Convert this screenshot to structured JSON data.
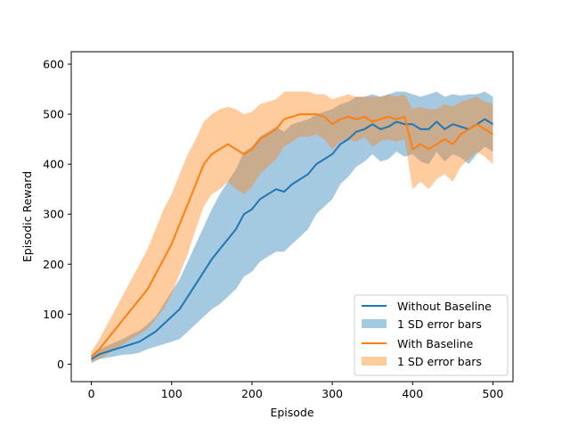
{
  "chart_data": {
    "type": "line",
    "title": "",
    "xlabel": "Episode",
    "ylabel": "Episodic Reward",
    "xlim": [
      -25,
      525
    ],
    "ylim": [
      -35,
      625
    ],
    "xticks": [
      0,
      100,
      200,
      300,
      400,
      500
    ],
    "yticks": [
      0,
      100,
      200,
      300,
      400,
      500,
      600
    ],
    "grid": false,
    "legend_position": "lower right",
    "series": [
      {
        "name": "Without Baseline",
        "color": "#1f77b4",
        "band_label": "1 SD error bars",
        "band_color": "#1f77b4",
        "mean": {
          "x": [
            0,
            10,
            20,
            30,
            40,
            50,
            60,
            70,
            80,
            90,
            100,
            110,
            120,
            130,
            140,
            150,
            160,
            170,
            180,
            190,
            200,
            210,
            220,
            230,
            240,
            250,
            260,
            270,
            280,
            290,
            300,
            310,
            320,
            330,
            340,
            350,
            360,
            370,
            380,
            390,
            400,
            410,
            420,
            430,
            440,
            450,
            460,
            470,
            480,
            490,
            500
          ],
          "y": [
            10,
            20,
            25,
            30,
            35,
            40,
            45,
            55,
            65,
            80,
            95,
            110,
            135,
            160,
            185,
            210,
            230,
            250,
            270,
            300,
            310,
            330,
            340,
            350,
            345,
            360,
            370,
            380,
            400,
            410,
            420,
            440,
            450,
            465,
            470,
            480,
            470,
            475,
            485,
            480,
            480,
            470,
            470,
            485,
            470,
            480,
            475,
            470,
            480,
            490,
            480
          ]
        },
        "sd": [
          8,
          10,
          12,
          14,
          16,
          20,
          22,
          25,
          30,
          40,
          50,
          60,
          70,
          80,
          90,
          100,
          110,
          115,
          120,
          125,
          125,
          125,
          125,
          125,
          120,
          120,
          115,
          110,
          100,
          95,
          90,
          80,
          75,
          70,
          65,
          60,
          65,
          65,
          60,
          65,
          60,
          65,
          70,
          60,
          65,
          60,
          62,
          70,
          60,
          55,
          55
        ]
      },
      {
        "name": "With Baseline",
        "color": "#ff7f0e",
        "band_label": "1 SD error bars",
        "band_color": "#ff7f0e",
        "mean": {
          "x": [
            0,
            10,
            20,
            30,
            40,
            50,
            60,
            70,
            80,
            90,
            100,
            110,
            120,
            130,
            140,
            150,
            160,
            170,
            180,
            190,
            200,
            210,
            220,
            230,
            240,
            250,
            260,
            270,
            280,
            290,
            300,
            310,
            320,
            330,
            340,
            350,
            360,
            370,
            380,
            390,
            400,
            410,
            420,
            430,
            440,
            450,
            460,
            470,
            480,
            490,
            500
          ],
          "y": [
            15,
            30,
            50,
            70,
            90,
            110,
            130,
            150,
            180,
            210,
            240,
            280,
            320,
            360,
            400,
            420,
            430,
            440,
            430,
            420,
            430,
            450,
            460,
            470,
            490,
            495,
            500,
            500,
            500,
            495,
            480,
            490,
            495,
            490,
            495,
            485,
            490,
            495,
            490,
            495,
            430,
            440,
            430,
            440,
            450,
            440,
            460,
            470,
            480,
            470,
            460
          ]
        },
        "sd": [
          10,
          20,
          30,
          40,
          50,
          60,
          70,
          80,
          90,
          100,
          100,
          100,
          100,
          90,
          85,
          80,
          80,
          75,
          80,
          80,
          75,
          70,
          65,
          60,
          55,
          50,
          45,
          45,
          40,
          45,
          50,
          45,
          45,
          45,
          40,
          50,
          45,
          45,
          45,
          45,
          80,
          75,
          80,
          70,
          70,
          75,
          65,
          60,
          55,
          55,
          60
        ]
      }
    ]
  }
}
